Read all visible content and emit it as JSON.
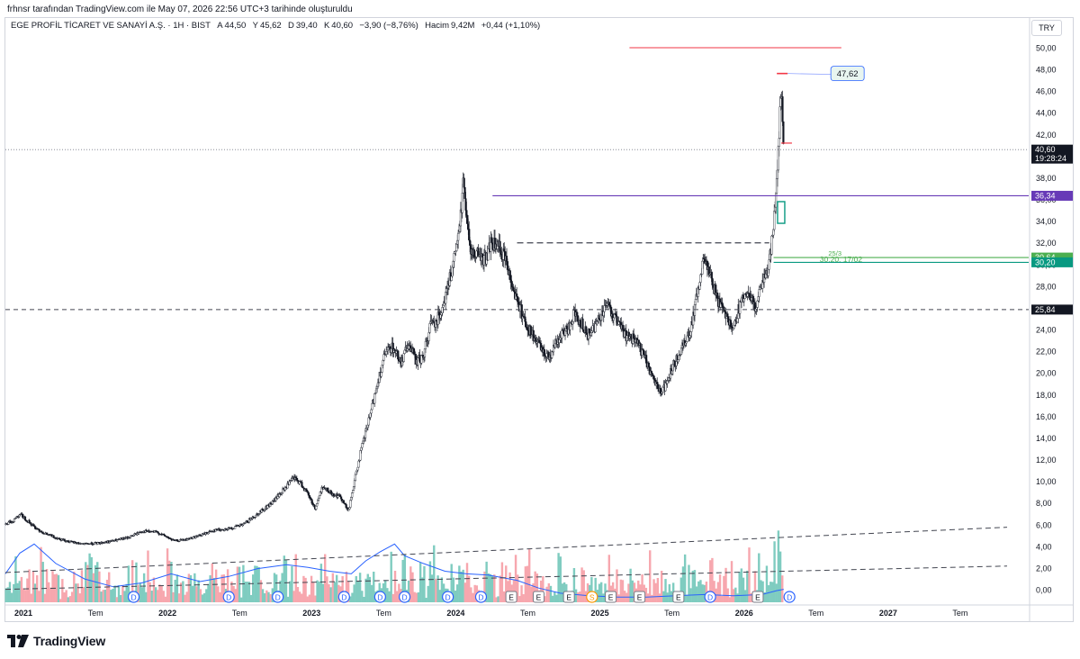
{
  "header": {
    "attribution": "frhnsr tarafından TradingView.com ile May 07, 2026 22:56 UTC+3 tarihinde oluşturuldu"
  },
  "legend": {
    "symbol": "EGE PROFİL TİCARET VE SANAYİ A.Ş. · 1H · BIST",
    "open_label": "A",
    "open": "44,50",
    "high_label": "Y",
    "high": "45,62",
    "low_label": "D",
    "low": "39,40",
    "close_label": "K",
    "close": "40,60",
    "change": "−3,90 (−8,76%)",
    "volume_label": "Hacim",
    "volume": "9,42M",
    "volume_change": "+0,44 (+1,10%)"
  },
  "currency": "TRY",
  "colors": {
    "up": "#089981",
    "down": "#f23645",
    "vol_up": "#7fccc0",
    "vol_down": "#f7a7ae",
    "ma": "#2962ff",
    "purple": "#673ab7",
    "green_label": "#4caf50",
    "green_dark": "#089981"
  },
  "chart_data": {
    "type": "candlestick",
    "y_axis": {
      "min": 0,
      "max": 50,
      "step": 2,
      "tick_labels": [
        "0,00",
        "2,00",
        "4,00",
        "6,00",
        "8,00",
        "10,00",
        "12,00",
        "14,00",
        "16,00",
        "18,00",
        "20,00",
        "22,00",
        "24,00",
        "26,00",
        "28,00",
        "30,00",
        "32,00",
        "34,00",
        "36,00",
        "38,00",
        "40,00",
        "42,00",
        "44,00",
        "46,00",
        "48,00",
        "50,00"
      ]
    },
    "x_axis": {
      "tick_labels": [
        "2021",
        "Tem",
        "2022",
        "Tem",
        "2023",
        "Tem",
        "2024",
        "Tem",
        "2025",
        "Tem",
        "2026",
        "Tem",
        "2027",
        "Tem"
      ],
      "tick_positions_date": [
        2021.0,
        2021.5,
        2022.0,
        2022.5,
        2023.0,
        2023.5,
        2024.0,
        2024.5,
        2025.0,
        2025.5,
        2026.0,
        2026.5,
        2027.0,
        2027.5
      ]
    },
    "price_path": [
      [
        2020.95,
        6.0
      ],
      [
        2021.0,
        6.3
      ],
      [
        2021.05,
        7.0
      ],
      [
        2021.1,
        6.4
      ],
      [
        2021.15,
        5.8
      ],
      [
        2021.22,
        5.2
      ],
      [
        2021.3,
        4.8
      ],
      [
        2021.4,
        4.4
      ],
      [
        2021.5,
        4.2
      ],
      [
        2021.6,
        4.3
      ],
      [
        2021.7,
        4.5
      ],
      [
        2021.8,
        4.8
      ],
      [
        2021.9,
        5.4
      ],
      [
        2022.0,
        5.3
      ],
      [
        2022.05,
        5.0
      ],
      [
        2022.12,
        4.5
      ],
      [
        2022.2,
        4.6
      ],
      [
        2022.3,
        5.0
      ],
      [
        2022.4,
        5.5
      ],
      [
        2022.5,
        5.6
      ],
      [
        2022.6,
        6.0
      ],
      [
        2022.7,
        7.0
      ],
      [
        2022.8,
        8.0
      ],
      [
        2022.88,
        9.2
      ],
      [
        2022.95,
        10.3
      ],
      [
        2023.0,
        9.8
      ],
      [
        2023.05,
        8.8
      ],
      [
        2023.1,
        7.5
      ],
      [
        2023.15,
        9.5
      ],
      [
        2023.2,
        9.0
      ],
      [
        2023.28,
        8.5
      ],
      [
        2023.33,
        7.2
      ],
      [
        2023.38,
        10.5
      ],
      [
        2023.42,
        13.0
      ],
      [
        2023.48,
        16.0
      ],
      [
        2023.53,
        19.0
      ],
      [
        2023.58,
        21.5
      ],
      [
        2023.63,
        22.5
      ],
      [
        2023.7,
        21.0
      ],
      [
        2023.75,
        22.8
      ],
      [
        2023.8,
        21.0
      ],
      [
        2023.85,
        21.5
      ],
      [
        2023.9,
        24.5
      ],
      [
        2023.95,
        25.0
      ],
      [
        2024.0,
        27.0
      ],
      [
        2024.05,
        29.5
      ],
      [
        2024.1,
        33.0
      ],
      [
        2024.13,
        38.0
      ],
      [
        2024.17,
        31.5
      ],
      [
        2024.22,
        31.0
      ],
      [
        2024.28,
        30.5
      ],
      [
        2024.32,
        32.0
      ],
      [
        2024.38,
        31.5
      ],
      [
        2024.42,
        30.5
      ],
      [
        2024.47,
        28.0
      ],
      [
        2024.52,
        26.0
      ],
      [
        2024.58,
        24.0
      ],
      [
        2024.65,
        22.5
      ],
      [
        2024.72,
        21.5
      ],
      [
        2024.78,
        23.0
      ],
      [
        2024.85,
        24.0
      ],
      [
        2024.9,
        25.5
      ],
      [
        2024.95,
        24.5
      ],
      [
        2025.0,
        23.5
      ],
      [
        2025.07,
        25.0
      ],
      [
        2025.12,
        26.5
      ],
      [
        2025.18,
        25.0
      ],
      [
        2025.25,
        23.5
      ],
      [
        2025.32,
        23.0
      ],
      [
        2025.38,
        21.5
      ],
      [
        2025.43,
        20.0
      ],
      [
        2025.47,
        19.0
      ],
      [
        2025.5,
        18.0
      ],
      [
        2025.55,
        19.5
      ],
      [
        2025.6,
        21.0
      ],
      [
        2025.65,
        22.5
      ],
      [
        2025.7,
        24.0
      ],
      [
        2025.75,
        27.0
      ],
      [
        2025.8,
        31.0
      ],
      [
        2025.85,
        28.5
      ],
      [
        2025.9,
        26.5
      ],
      [
        2025.95,
        25.5
      ],
      [
        2026.0,
        24.0
      ],
      [
        2026.05,
        26.5
      ],
      [
        2026.1,
        27.5
      ],
      [
        2026.15,
        26.0
      ],
      [
        2026.2,
        28.0
      ],
      [
        2026.25,
        30.0
      ],
      [
        2026.28,
        34.0
      ],
      [
        2026.3,
        37.0
      ],
      [
        2026.32,
        42.0
      ],
      [
        2026.33,
        46.5
      ],
      [
        2026.34,
        44.0
      ],
      [
        2026.35,
        40.6
      ]
    ],
    "volume_scale_max": 6.0,
    "ma_path": [
      [
        2020.95,
        2.2
      ],
      [
        2021.05,
        3.8
      ],
      [
        2021.15,
        4.5
      ],
      [
        2021.3,
        3.0
      ],
      [
        2021.5,
        1.8
      ],
      [
        2021.7,
        1.2
      ],
      [
        2021.9,
        1.5
      ],
      [
        2022.1,
        2.2
      ],
      [
        2022.3,
        1.6
      ],
      [
        2022.5,
        2.0
      ],
      [
        2022.7,
        2.6
      ],
      [
        2022.9,
        2.9
      ],
      [
        2023.05,
        2.7
      ],
      [
        2023.2,
        2.4
      ],
      [
        2023.35,
        2.2
      ],
      [
        2023.45,
        3.2
      ],
      [
        2023.55,
        3.9
      ],
      [
        2023.65,
        4.5
      ],
      [
        2023.72,
        3.6
      ],
      [
        2023.85,
        3.0
      ],
      [
        2024.0,
        2.4
      ],
      [
        2024.15,
        2.2
      ],
      [
        2024.3,
        2.1
      ],
      [
        2024.5,
        1.7
      ],
      [
        2024.65,
        1.1
      ],
      [
        2024.8,
        0.7
      ],
      [
        2025.0,
        0.5
      ],
      [
        2025.2,
        0.4
      ],
      [
        2025.4,
        0.4
      ],
      [
        2025.6,
        0.5
      ],
      [
        2025.8,
        0.6
      ],
      [
        2026.0,
        0.5
      ],
      [
        2026.2,
        0.6
      ],
      [
        2026.3,
        0.9
      ],
      [
        2026.35,
        1.0
      ]
    ],
    "horizontal_levels": [
      {
        "value": 40.6,
        "label": "40,60",
        "sub": "19:28:24",
        "style": "dotted",
        "color": "#787b86",
        "badge_bg": "#131722",
        "x_start": 2020.95
      },
      {
        "value": 36.34,
        "label": "36,34",
        "style": "solid",
        "color": "#673ab7",
        "badge_bg": "#673ab7",
        "x_start": 2024.33
      },
      {
        "value": 30.64,
        "label": "30,64",
        "style": "solid",
        "color": "#4caf50",
        "badge_bg": "#4caf50",
        "x_start": 2026.28
      },
      {
        "value": 30.2,
        "label": "30,20",
        "style": "solid",
        "color": "#089981",
        "badge_bg": "#089981",
        "x_start": 2026.28
      },
      {
        "value": 25.84,
        "label": "25,84",
        "style": "dashed",
        "color": "#434651",
        "badge_bg": "#131722",
        "x_start": 2020.95
      }
    ],
    "annotations": [
      {
        "id": "red_line",
        "y": 50.0,
        "x1": 2025.28,
        "x2": 2026.75,
        "color": "#f23645"
      },
      {
        "id": "neckline",
        "y": 32.0,
        "x1": 2024.5,
        "x2": 2026.25,
        "color": "#434651",
        "style": "dashed"
      },
      {
        "id": "peak_label",
        "text": "47,62",
        "y": 47.62,
        "x": 2026.34
      },
      {
        "id": "fib_text",
        "text": "30,20, 17/02",
        "y": 30.4,
        "x": 2026.6
      },
      {
        "id": "fib_small",
        "text": "25/3",
        "y": 31.0,
        "x": 2026.66
      }
    ],
    "trendlines_volume": [
      {
        "from": [
          2020.95,
          2.3
        ],
        "to": [
          2027.9,
          5.8
        ]
      },
      {
        "from": [
          2020.95,
          1.0
        ],
        "to": [
          2027.9,
          2.8
        ]
      }
    ],
    "event_markers": [
      {
        "date": 2021.84,
        "letter": "D",
        "kind": "dividend"
      },
      {
        "date": 2022.5,
        "letter": "D",
        "kind": "dividend"
      },
      {
        "date": 2022.84,
        "letter": "D",
        "kind": "dividend"
      },
      {
        "date": 2023.3,
        "letter": "D",
        "kind": "dividend"
      },
      {
        "date": 2023.55,
        "letter": "D",
        "kind": "dividend"
      },
      {
        "date": 2023.72,
        "letter": "D",
        "kind": "dividend"
      },
      {
        "date": 2024.02,
        "letter": "D",
        "kind": "dividend"
      },
      {
        "date": 2024.25,
        "letter": "D",
        "kind": "dividend"
      },
      {
        "date": 2024.46,
        "letter": "E",
        "kind": "earnings"
      },
      {
        "date": 2024.65,
        "letter": "E",
        "kind": "earnings"
      },
      {
        "date": 2024.86,
        "letter": "E",
        "kind": "earnings"
      },
      {
        "date": 2025.02,
        "letter": "S",
        "kind": "split"
      },
      {
        "date": 2025.15,
        "letter": "E",
        "kind": "earnings"
      },
      {
        "date": 2025.35,
        "letter": "E",
        "kind": "earnings"
      },
      {
        "date": 2025.62,
        "letter": "E",
        "kind": "earnings"
      },
      {
        "date": 2025.84,
        "letter": "D",
        "kind": "dividend"
      },
      {
        "date": 2026.17,
        "letter": "E",
        "kind": "earnings"
      },
      {
        "date": 2026.39,
        "letter": "D",
        "kind": "dividend"
      }
    ]
  },
  "footer": {
    "brand": "TradingView"
  }
}
